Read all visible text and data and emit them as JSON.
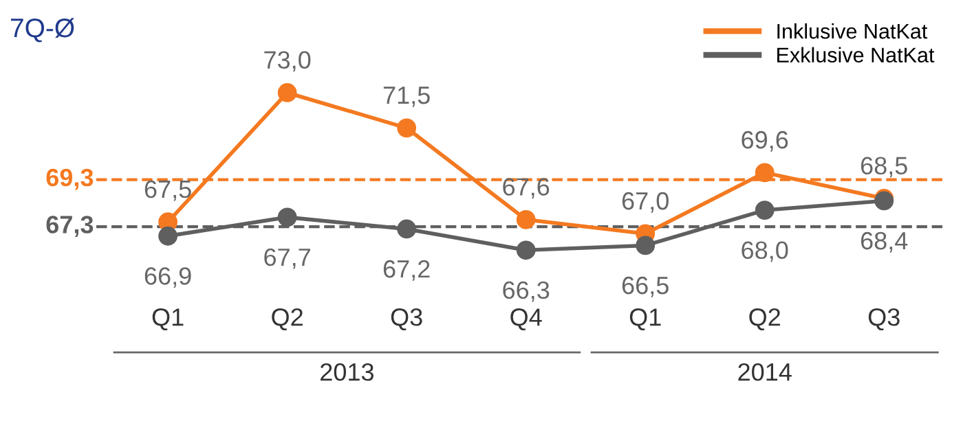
{
  "chart_data": {
    "type": "line",
    "title": "7Q-Ø",
    "categories": [
      "Q1",
      "Q2",
      "Q3",
      "Q4",
      "Q1",
      "Q2",
      "Q3"
    ],
    "series": [
      {
        "name": "Inklusive NatKat",
        "color": "#f47920",
        "values": [
          67.5,
          73.0,
          71.5,
          67.6,
          67.0,
          69.6,
          68.5
        ],
        "value_labels": [
          "67,5",
          "73,0",
          "71,5",
          "67,6",
          "67,0",
          "69,6",
          "68,5"
        ]
      },
      {
        "name": "Exklusive NatKat",
        "color": "#5f5f5f",
        "values": [
          66.9,
          67.7,
          67.2,
          66.3,
          66.5,
          68.0,
          68.4
        ],
        "value_labels": [
          "66,9",
          "67,7",
          "67,2",
          "66,3",
          "66,5",
          "68,0",
          "68,4"
        ]
      }
    ],
    "ref_lines": [
      {
        "axis": "y",
        "value": 69.3,
        "label": "69,3",
        "color": "#f47920",
        "line_style": "dashed"
      },
      {
        "axis": "y",
        "value": 67.3,
        "label": "67,3",
        "color": "#5f5f5f",
        "line_style": "dashed"
      }
    ],
    "annotations": [
      "2013",
      "2014"
    ],
    "tick_labels": "x",
    "marker": "circle",
    "legend": "top right",
    "grid": false
  }
}
